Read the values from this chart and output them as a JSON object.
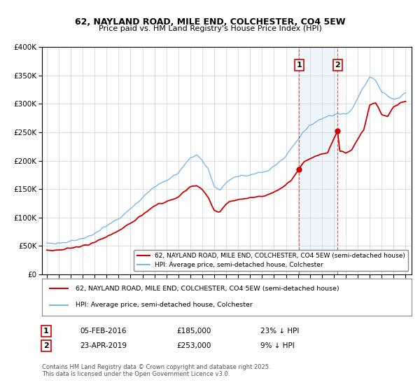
{
  "title": "62, NAYLAND ROAD, MILE END, COLCHESTER, CO4 5EW",
  "subtitle": "Price paid vs. HM Land Registry's House Price Index (HPI)",
  "legend_line1": "62, NAYLAND ROAD, MILE END, COLCHESTER, CO4 5EW (semi-detached house)",
  "legend_line2": "HPI: Average price, semi-detached house, Colchester",
  "footnote": "Contains HM Land Registry data © Crown copyright and database right 2025.\nThis data is licensed under the Open Government Licence v3.0.",
  "sale1_date": "05-FEB-2016",
  "sale1_price": "£185,000",
  "sale1_hpi": "23% ↓ HPI",
  "sale2_date": "23-APR-2019",
  "sale2_price": "£253,000",
  "sale2_hpi": "9% ↓ HPI",
  "hpi_color": "#7ab8e8",
  "price_color": "#cc0000",
  "marker1_x": 2016.09,
  "marker1_y": 185000,
  "marker2_x": 2019.31,
  "marker2_y": 253000,
  "vline1_x": 2016.09,
  "vline2_x": 2019.31,
  "ylim": [
    0,
    400000
  ],
  "xlim": [
    1994.6,
    2025.5
  ],
  "bg_color": "#ffffff"
}
